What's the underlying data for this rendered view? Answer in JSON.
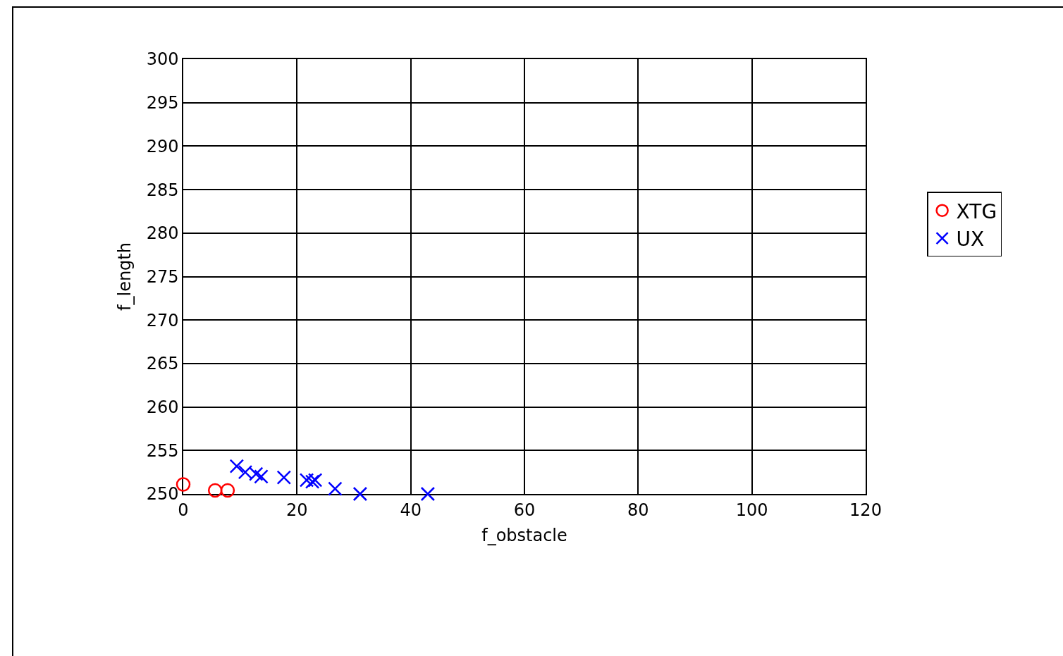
{
  "chart_data": {
    "type": "scatter",
    "xlabel": "f_obstacle",
    "ylabel": "f_length",
    "xlim": [
      0,
      120
    ],
    "xticks": [
      0,
      20,
      40,
      60,
      80,
      100,
      120
    ],
    "ylim": [
      250,
      300
    ],
    "yticks": [
      250,
      255,
      260,
      265,
      270,
      275,
      280,
      285,
      290,
      295,
      300
    ],
    "grid": true,
    "legend": "right",
    "series": [
      {
        "name": "XTG",
        "color": "#ff0000",
        "marker": "circle",
        "x": [
          0,
          5.6,
          7.8
        ],
        "values": [
          251.1,
          250.4,
          250.4
        ]
      },
      {
        "name": "UX",
        "color": "#0000ff",
        "marker": "cross",
        "x": [
          9.4,
          10.9,
          12.8,
          13.7,
          17.7,
          21.7,
          22.7,
          23.2,
          26.7,
          31.1,
          43.0
        ],
        "values": [
          253.2,
          252.5,
          252.3,
          252.0,
          251.9,
          251.6,
          251.4,
          251.6,
          250.6,
          250.0,
          250.0
        ]
      }
    ]
  }
}
